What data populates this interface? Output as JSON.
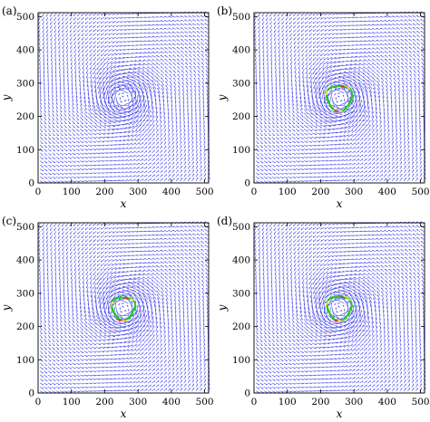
{
  "chart_data": [
    {
      "panel": "(a)",
      "type": "quiver",
      "xlabel": "x",
      "ylabel": "y",
      "xlim": [
        0,
        512
      ],
      "ylim": [
        0,
        512
      ],
      "xticks": [
        "0",
        "100",
        "200",
        "300",
        "400",
        "500"
      ],
      "yticks": [
        "0",
        "100",
        "200",
        "300",
        "400",
        "500"
      ],
      "vortex_center": [
        256,
        256
      ],
      "arrow_color": "#1e1ee6",
      "highlight_ring": null
    },
    {
      "panel": "(b)",
      "type": "quiver",
      "xlabel": "x",
      "ylabel": "y",
      "xlim": [
        0,
        512
      ],
      "ylim": [
        0,
        512
      ],
      "xticks": [
        "0",
        "100",
        "200",
        "300",
        "400",
        "500"
      ],
      "yticks": [
        "0",
        "100",
        "200",
        "300",
        "400",
        "500"
      ],
      "vortex_center": [
        256,
        256
      ],
      "arrow_color": "#1e1ee6",
      "highlight_ring": {
        "radius": 38,
        "colors": [
          "#22cc22",
          "#e8e81c",
          "#ee2222"
        ]
      }
    },
    {
      "panel": "(c)",
      "type": "quiver",
      "xlabel": "x",
      "ylabel": "y",
      "xlim": [
        0,
        512
      ],
      "ylim": [
        0,
        512
      ],
      "xticks": [
        "0",
        "100",
        "200",
        "300",
        "400",
        "500"
      ],
      "yticks": [
        "0",
        "100",
        "200",
        "300",
        "400",
        "500"
      ],
      "vortex_center": [
        256,
        256
      ],
      "arrow_color": "#1e1ee6",
      "highlight_ring": {
        "radius": 34,
        "colors": [
          "#22cc22",
          "#e8e81c",
          "#ee2222"
        ]
      }
    },
    {
      "panel": "(d)",
      "type": "quiver",
      "xlabel": "x",
      "ylabel": "y",
      "xlim": [
        0,
        512
      ],
      "ylim": [
        0,
        512
      ],
      "xticks": [
        "0",
        "100",
        "200",
        "300",
        "400",
        "500"
      ],
      "yticks": [
        "0",
        "100",
        "200",
        "300",
        "400",
        "500"
      ],
      "vortex_center": [
        256,
        256
      ],
      "arrow_color": "#1e1ee6",
      "highlight_ring": {
        "radius": 36,
        "colors": [
          "#22cc22",
          "#e8e81c",
          "#ee2222"
        ]
      }
    }
  ]
}
